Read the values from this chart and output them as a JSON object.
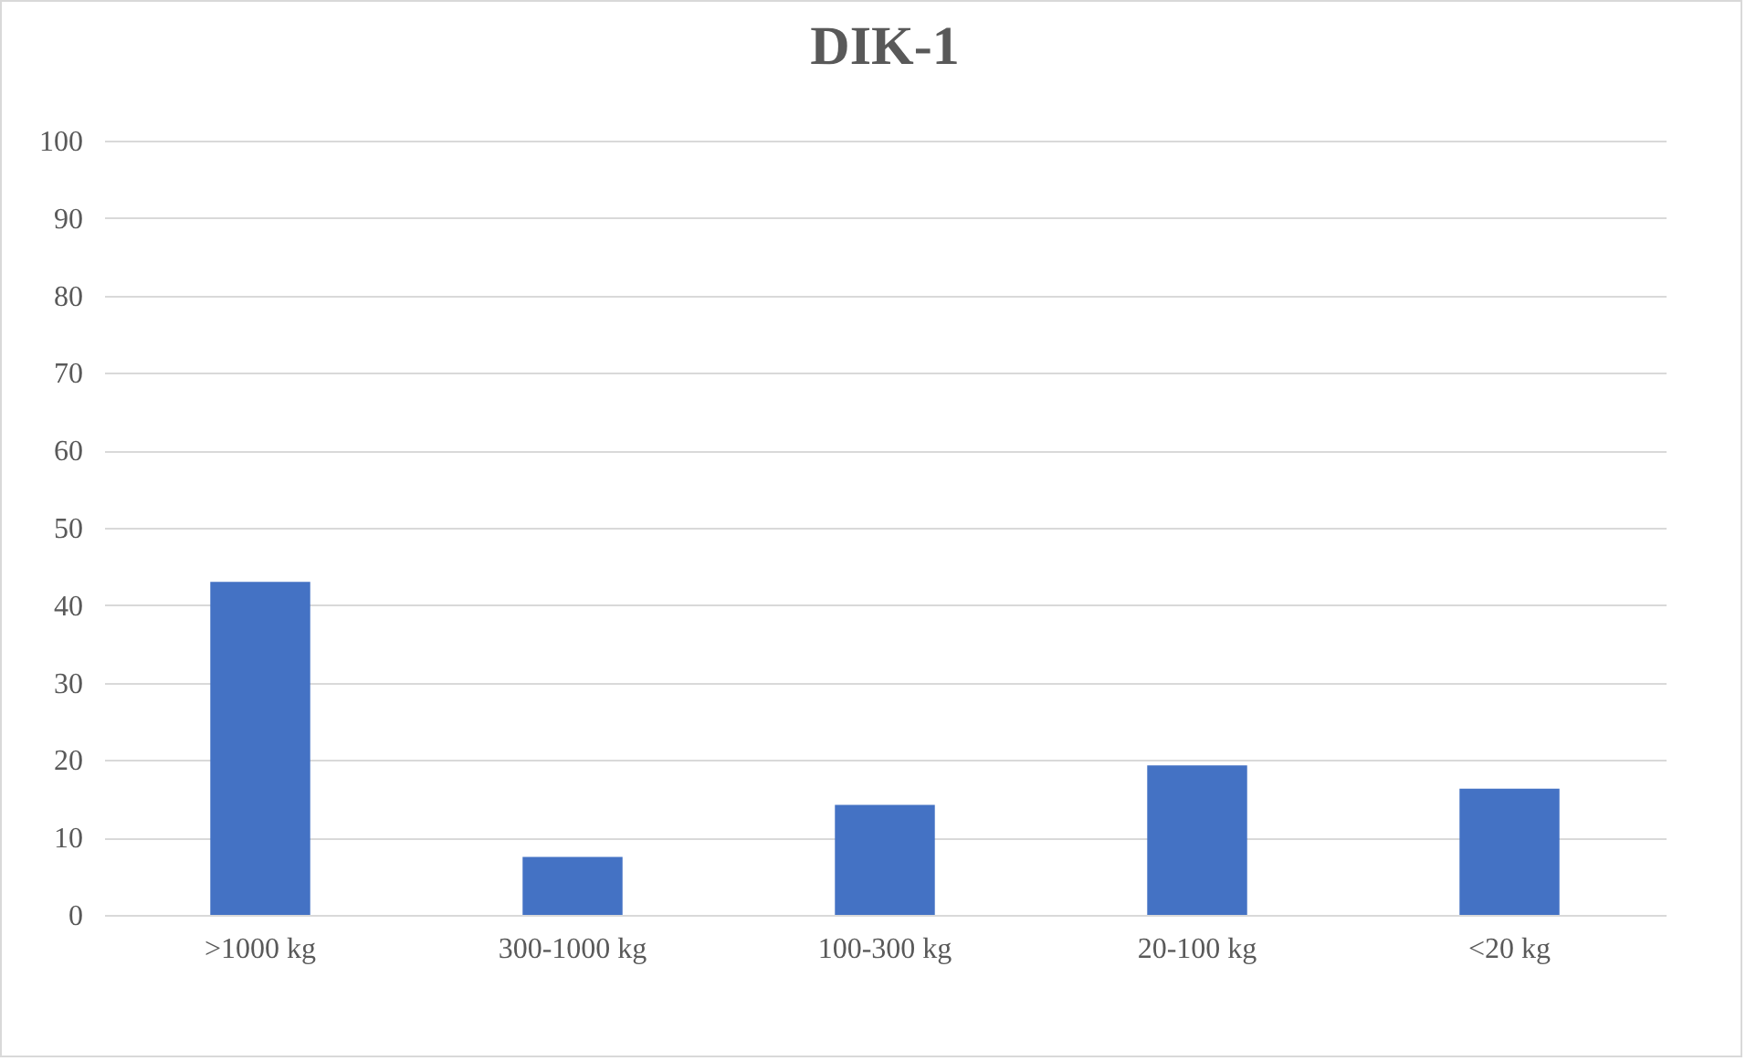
{
  "chart_data": {
    "type": "bar",
    "title": "DIK-1",
    "categories": [
      ">1000 kg",
      "300-1000 kg",
      "100-300 kg",
      "20-100 kg",
      "<20 kg"
    ],
    "values": [
      43,
      7.5,
      14.2,
      19.3,
      16.3
    ],
    "color": "#4472c4",
    "ylim": [
      0,
      100
    ],
    "yticks": [
      0,
      10,
      20,
      30,
      40,
      50,
      60,
      70,
      80,
      90,
      100
    ],
    "grid": "y"
  }
}
